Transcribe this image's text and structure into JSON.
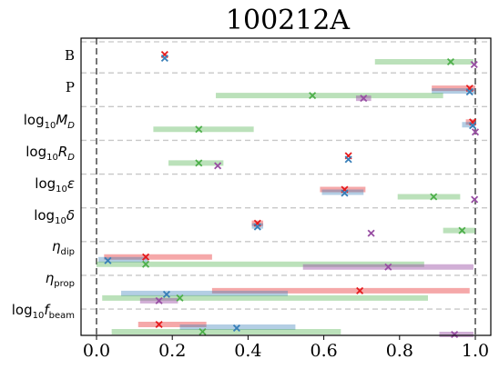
{
  "chart_data": {
    "type": "scatter",
    "title": "100212A",
    "xlim": [
      0.0,
      1.0
    ],
    "x_ticks": [
      "0.0",
      "0.2",
      "0.4",
      "0.6",
      "0.8",
      "1.0"
    ],
    "x_tick_values": [
      0.0,
      0.2,
      0.4,
      0.6,
      0.8,
      1.0
    ],
    "grid": "horizontal dashed separators",
    "reference_lines": [
      0.0,
      1.0
    ],
    "series_colors": [
      "#e41a1c",
      "#377eb8",
      "#4daf4a",
      "#984ea3"
    ],
    "rows": [
      {
        "label": "B",
        "points": [
          {
            "x": 0.18,
            "lo": null,
            "hi": null
          },
          {
            "x": 0.18,
            "lo": null,
            "hi": null
          },
          {
            "x": 0.935,
            "lo": 0.735,
            "hi": 0.995
          },
          {
            "x": 0.997,
            "lo": null,
            "hi": null
          }
        ]
      },
      {
        "label": "P",
        "points": [
          {
            "x": 0.985,
            "lo": 0.885,
            "hi": 1.0
          },
          {
            "x": 0.985,
            "lo": 0.885,
            "hi": 1.0
          },
          {
            "x": 0.57,
            "lo": 0.315,
            "hi": 0.915
          },
          {
            "x": 0.705,
            "lo": 0.685,
            "hi": 0.725
          }
        ]
      },
      {
        "label": "log10 MD",
        "points": [
          {
            "x": 0.993,
            "lo": 0.975,
            "hi": 1.0
          },
          {
            "x": 0.993,
            "lo": 0.965,
            "hi": 1.0
          },
          {
            "x": 0.27,
            "lo": 0.15,
            "hi": 0.415
          },
          {
            "x": 1.0,
            "lo": null,
            "hi": null
          }
        ]
      },
      {
        "label": "log10 RD",
        "points": [
          {
            "x": 0.665,
            "lo": null,
            "hi": null
          },
          {
            "x": 0.665,
            "lo": null,
            "hi": null
          },
          {
            "x": 0.27,
            "lo": 0.19,
            "hi": 0.335
          },
          {
            "x": 0.32,
            "lo": null,
            "hi": null
          }
        ]
      },
      {
        "label": "log10 ε",
        "points": [
          {
            "x": 0.655,
            "lo": 0.59,
            "hi": 0.71
          },
          {
            "x": 0.655,
            "lo": 0.595,
            "hi": 0.705
          },
          {
            "x": 0.89,
            "lo": 0.795,
            "hi": 0.96
          },
          {
            "x": 0.998,
            "lo": null,
            "hi": null
          }
        ]
      },
      {
        "label": "log10 δ",
        "points": [
          {
            "x": 0.425,
            "lo": 0.41,
            "hi": 0.44
          },
          {
            "x": 0.425,
            "lo": 0.41,
            "hi": 0.44
          },
          {
            "x": 0.965,
            "lo": 0.915,
            "hi": 1.0
          },
          {
            "x": 0.725,
            "lo": null,
            "hi": null
          }
        ]
      },
      {
        "label": "η dip",
        "points": [
          {
            "x": 0.13,
            "lo": 0.02,
            "hi": 0.305
          },
          {
            "x": 0.03,
            "lo": 0.005,
            "hi": 0.135
          },
          {
            "x": 0.13,
            "lo": 0.0,
            "hi": 0.865
          },
          {
            "x": 0.77,
            "lo": 0.545,
            "hi": 0.995
          }
        ]
      },
      {
        "label": "η prop",
        "points": [
          {
            "x": 0.695,
            "lo": 0.305,
            "hi": 0.985
          },
          {
            "x": 0.185,
            "lo": 0.065,
            "hi": 0.505
          },
          {
            "x": 0.22,
            "lo": 0.015,
            "hi": 0.875
          },
          {
            "x": 0.165,
            "lo": 0.115,
            "hi": 0.215
          }
        ]
      },
      {
        "label": "log10 fbeam",
        "points": [
          {
            "x": 0.165,
            "lo": 0.11,
            "hi": 0.29
          },
          {
            "x": 0.37,
            "lo": 0.22,
            "hi": 0.525
          },
          {
            "x": 0.28,
            "lo": 0.04,
            "hi": 0.645
          },
          {
            "x": 0.945,
            "lo": 0.905,
            "hi": 0.995
          }
        ]
      }
    ]
  }
}
